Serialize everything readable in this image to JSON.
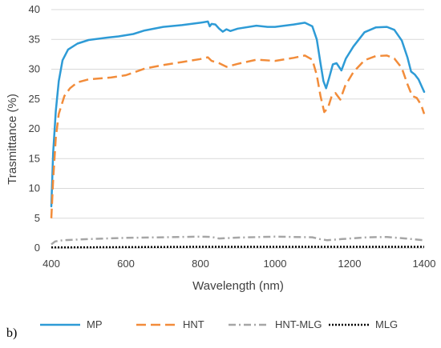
{
  "panel_label": "b)",
  "chart_data": {
    "type": "line",
    "title": "",
    "xlabel": "Wavelength (nm)",
    "ylabel": "Trasmittance (%)",
    "xlim": [
      400,
      1400
    ],
    "ylim": [
      0,
      40
    ],
    "x_ticks": [
      400,
      600,
      800,
      1000,
      1200,
      1400
    ],
    "y_ticks": [
      0,
      5,
      10,
      15,
      20,
      25,
      30,
      35,
      40
    ],
    "grid": "horizontal",
    "legend_position": "bottom",
    "series": [
      {
        "name": "MP",
        "color": "#2E9BD6",
        "dash": "solid",
        "points": [
          [
            400,
            7
          ],
          [
            405,
            16
          ],
          [
            412,
            23
          ],
          [
            420,
            28
          ],
          [
            430,
            31.5
          ],
          [
            445,
            33.3
          ],
          [
            470,
            34.3
          ],
          [
            500,
            34.9
          ],
          [
            550,
            35.3
          ],
          [
            580,
            35.5
          ],
          [
            620,
            35.9
          ],
          [
            650,
            36.5
          ],
          [
            700,
            37.1
          ],
          [
            750,
            37.4
          ],
          [
            800,
            37.8
          ],
          [
            820,
            38.0
          ],
          [
            825,
            37.2
          ],
          [
            830,
            37.6
          ],
          [
            840,
            37.5
          ],
          [
            850,
            36.8
          ],
          [
            860,
            36.3
          ],
          [
            870,
            36.7
          ],
          [
            880,
            36.4
          ],
          [
            900,
            36.8
          ],
          [
            950,
            37.3
          ],
          [
            980,
            37.1
          ],
          [
            1000,
            37.1
          ],
          [
            1050,
            37.5
          ],
          [
            1080,
            37.8
          ],
          [
            1100,
            37.2
          ],
          [
            1112,
            35
          ],
          [
            1122,
            31
          ],
          [
            1130,
            28
          ],
          [
            1137,
            26.8
          ],
          [
            1145,
            28.5
          ],
          [
            1155,
            30.8
          ],
          [
            1165,
            31
          ],
          [
            1178,
            29.8
          ],
          [
            1190,
            31.8
          ],
          [
            1210,
            33.8
          ],
          [
            1240,
            36.2
          ],
          [
            1270,
            37.0
          ],
          [
            1300,
            37.1
          ],
          [
            1320,
            36.6
          ],
          [
            1340,
            34.8
          ],
          [
            1355,
            32
          ],
          [
            1365,
            29.6
          ],
          [
            1375,
            29.1
          ],
          [
            1385,
            28.3
          ],
          [
            1392,
            27.3
          ],
          [
            1400,
            26.2
          ]
        ]
      },
      {
        "name": "HNT",
        "color": "#F28C3A",
        "dash": "long-dash",
        "points": [
          [
            400,
            5
          ],
          [
            405,
            11.5
          ],
          [
            412,
            18.5
          ],
          [
            420,
            22.5
          ],
          [
            435,
            25.5
          ],
          [
            450,
            26.8
          ],
          [
            470,
            27.8
          ],
          [
            500,
            28.3
          ],
          [
            560,
            28.6
          ],
          [
            600,
            29.0
          ],
          [
            650,
            30.1
          ],
          [
            700,
            30.7
          ],
          [
            750,
            31.2
          ],
          [
            800,
            31.7
          ],
          [
            820,
            32.0
          ],
          [
            830,
            31.4
          ],
          [
            850,
            31.0
          ],
          [
            870,
            30.4
          ],
          [
            900,
            30.9
          ],
          [
            950,
            31.6
          ],
          [
            1000,
            31.4
          ],
          [
            1050,
            31.9
          ],
          [
            1080,
            32.3
          ],
          [
            1100,
            31.6
          ],
          [
            1112,
            29
          ],
          [
            1122,
            25.5
          ],
          [
            1132,
            22.8
          ],
          [
            1142,
            23.5
          ],
          [
            1152,
            25.5
          ],
          [
            1162,
            26
          ],
          [
            1175,
            24.9
          ],
          [
            1188,
            27.2
          ],
          [
            1210,
            29.5
          ],
          [
            1240,
            31.5
          ],
          [
            1270,
            32.2
          ],
          [
            1300,
            32.3
          ],
          [
            1320,
            31.8
          ],
          [
            1340,
            30.2
          ],
          [
            1355,
            27.5
          ],
          [
            1368,
            25.5
          ],
          [
            1380,
            25.2
          ],
          [
            1392,
            24.0
          ],
          [
            1400,
            22.5
          ]
        ]
      },
      {
        "name": "HNT-MLG",
        "color": "#A6A6A6",
        "dash": "dash-dot",
        "points": [
          [
            400,
            0.6
          ],
          [
            410,
            1.1
          ],
          [
            430,
            1.3
          ],
          [
            500,
            1.5
          ],
          [
            600,
            1.7
          ],
          [
            700,
            1.8
          ],
          [
            800,
            1.9
          ],
          [
            830,
            1.85
          ],
          [
            850,
            1.6
          ],
          [
            900,
            1.75
          ],
          [
            1000,
            1.9
          ],
          [
            1100,
            1.8
          ],
          [
            1120,
            1.5
          ],
          [
            1140,
            1.3
          ],
          [
            1180,
            1.5
          ],
          [
            1250,
            1.8
          ],
          [
            1300,
            1.85
          ],
          [
            1350,
            1.6
          ],
          [
            1400,
            1.3
          ]
        ]
      },
      {
        "name": "MLG",
        "color": "#000000",
        "dash": "dotted",
        "points": [
          [
            400,
            0.1
          ],
          [
            600,
            0.15
          ],
          [
            800,
            0.2
          ],
          [
            1000,
            0.2
          ],
          [
            1200,
            0.2
          ],
          [
            1400,
            0.2
          ]
        ]
      }
    ]
  }
}
